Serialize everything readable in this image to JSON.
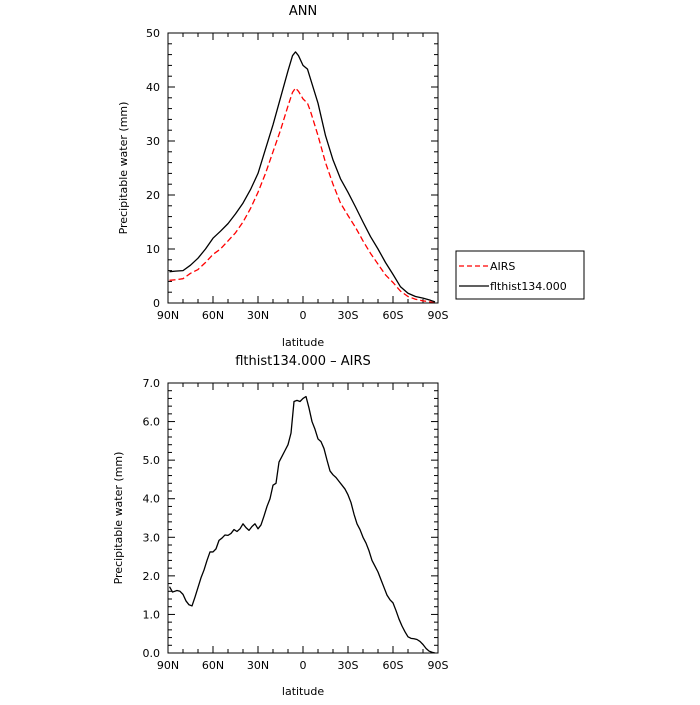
{
  "chart_data": [
    {
      "type": "line",
      "title": "ANN",
      "xlabel": "latitude",
      "ylabel": "Precipitable water (mm)",
      "xlim": [
        -90,
        90
      ],
      "ylim": [
        0,
        50
      ],
      "x_ticks": [
        -90,
        -60,
        -30,
        0,
        30,
        60,
        90
      ],
      "x_tick_labels": [
        "90N",
        "60N",
        "30N",
        "0",
        "30S",
        "60S",
        "90S"
      ],
      "y_ticks": [
        0,
        10,
        20,
        30,
        40,
        50
      ],
      "y_tick_labels": [
        "0",
        "10",
        "20",
        "30",
        "40",
        "50"
      ],
      "legend_position": "right",
      "series": [
        {
          "name": "AIRS",
          "color": "#ff0000",
          "dash": "dashed",
          "x": [
            -89,
            -85,
            -80,
            -75,
            -70,
            -65,
            -60,
            -55,
            -50,
            -45,
            -40,
            -35,
            -30,
            -25,
            -20,
            -15,
            -10,
            -7,
            -5,
            -3,
            0,
            3,
            5,
            10,
            15,
            20,
            25,
            30,
            35,
            40,
            45,
            50,
            55,
            60,
            65,
            70,
            75,
            80,
            85,
            88
          ],
          "y": [
            4.2,
            4.3,
            4.5,
            5.5,
            6.2,
            7.5,
            9.0,
            10.0,
            11.5,
            13.0,
            15.0,
            17.5,
            20.5,
            24.0,
            28.0,
            32.0,
            36.5,
            39.0,
            39.8,
            39.2,
            37.8,
            37.0,
            35.5,
            31.0,
            26.0,
            22.0,
            18.5,
            16.2,
            14.0,
            11.5,
            9.2,
            7.2,
            5.2,
            3.8,
            2.2,
            1.2,
            0.7,
            0.4,
            0.2,
            0.0
          ]
        },
        {
          "name": "flthist134.000",
          "color": "#000000",
          "dash": "solid",
          "x": [
            -89,
            -85,
            -80,
            -75,
            -70,
            -65,
            -60,
            -55,
            -50,
            -45,
            -40,
            -35,
            -30,
            -25,
            -20,
            -15,
            -10,
            -7,
            -5,
            -3,
            0,
            3,
            5,
            10,
            15,
            20,
            25,
            30,
            35,
            40,
            45,
            50,
            55,
            60,
            65,
            70,
            75,
            80,
            85,
            88
          ],
          "y": [
            5.8,
            5.9,
            6.0,
            7.0,
            8.3,
            10.0,
            12.0,
            13.3,
            14.7,
            16.5,
            18.5,
            21.0,
            24.0,
            28.5,
            33.0,
            38.0,
            43.0,
            45.8,
            46.5,
            45.8,
            44.0,
            43.3,
            41.5,
            37.0,
            31.0,
            26.5,
            23.0,
            20.5,
            17.8,
            15.0,
            12.3,
            10.0,
            7.5,
            5.3,
            3.0,
            1.8,
            1.2,
            0.9,
            0.5,
            0.2
          ]
        }
      ]
    },
    {
      "type": "line",
      "title": "flthist134.000 – AIRS",
      "xlabel": "latitude",
      "ylabel": "Precipitable water (mm)",
      "xlim": [
        -90,
        90
      ],
      "ylim": [
        0,
        7
      ],
      "x_ticks": [
        -90,
        -60,
        -30,
        0,
        30,
        60,
        90
      ],
      "x_tick_labels": [
        "90N",
        "60N",
        "30N",
        "0",
        "30S",
        "60S",
        "90S"
      ],
      "y_ticks": [
        0,
        1,
        2,
        3,
        4,
        5,
        6,
        7
      ],
      "y_tick_labels": [
        "0.0",
        "1.0",
        "2.0",
        "3.0",
        "4.0",
        "5.0",
        "6.0",
        "7.0"
      ],
      "series": [
        {
          "color": "#000000",
          "dash": "solid",
          "x": [
            -89,
            -87,
            -84,
            -82,
            -80,
            -78,
            -76,
            -74,
            -72,
            -70,
            -68,
            -66,
            -64,
            -62,
            -60,
            -58,
            -56,
            -54,
            -52,
            -50,
            -48,
            -46,
            -44,
            -42,
            -40,
            -38,
            -36,
            -34,
            -32,
            -30,
            -28,
            -26,
            -24,
            -22,
            -20,
            -18,
            -16,
            -14,
            -12,
            -10,
            -8,
            -6,
            -4,
            -2,
            0,
            2,
            4,
            6,
            8,
            10,
            12,
            14,
            16,
            18,
            20,
            22,
            24,
            26,
            28,
            30,
            32,
            34,
            36,
            38,
            40,
            42,
            44,
            46,
            48,
            50,
            52,
            54,
            56,
            58,
            60,
            62,
            64,
            66,
            68,
            70,
            72,
            74,
            76,
            78,
            80,
            82,
            84,
            86,
            88
          ],
          "y": [
            1.72,
            1.58,
            1.62,
            1.6,
            1.52,
            1.35,
            1.25,
            1.22,
            1.45,
            1.7,
            1.95,
            2.15,
            2.4,
            2.62,
            2.62,
            2.7,
            2.92,
            2.98,
            3.06,
            3.05,
            3.1,
            3.2,
            3.15,
            3.22,
            3.35,
            3.25,
            3.18,
            3.28,
            3.35,
            3.22,
            3.32,
            3.55,
            3.8,
            4.0,
            4.35,
            4.4,
            4.95,
            5.1,
            5.25,
            5.4,
            5.7,
            6.52,
            6.55,
            6.52,
            6.6,
            6.65,
            6.35,
            6.0,
            5.8,
            5.55,
            5.48,
            5.3,
            5.0,
            4.72,
            4.62,
            4.55,
            4.45,
            4.35,
            4.25,
            4.1,
            3.9,
            3.6,
            3.35,
            3.2,
            3.0,
            2.85,
            2.65,
            2.4,
            2.25,
            2.1,
            1.9,
            1.7,
            1.5,
            1.38,
            1.3,
            1.1,
            0.88,
            0.7,
            0.55,
            0.42,
            0.38,
            0.37,
            0.35,
            0.3,
            0.22,
            0.12,
            0.05,
            0.02,
            0.0
          ]
        }
      ]
    }
  ]
}
